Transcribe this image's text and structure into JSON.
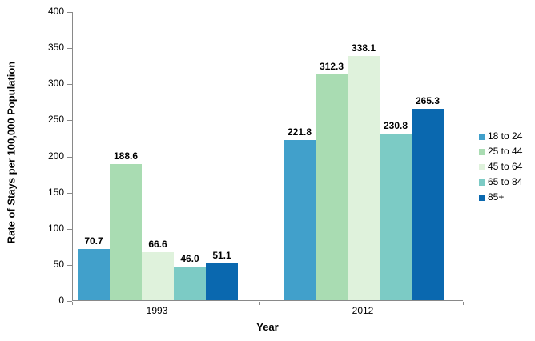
{
  "chart_data": {
    "type": "bar",
    "title": "",
    "xlabel": "Year",
    "ylabel": "Rate of Stays per 100,000 Population",
    "categories": [
      "1993",
      "2012"
    ],
    "series": [
      {
        "name": "18 to 24",
        "color": "#41A0CB",
        "values": [
          70.7,
          221.8
        ],
        "labels": [
          "70.7",
          "221.8"
        ]
      },
      {
        "name": "25 to 44",
        "color": "#A9DCB2",
        "values": [
          188.6,
          312.3
        ],
        "labels": [
          "188.6",
          "312.3"
        ]
      },
      {
        "name": "45 to 64",
        "color": "#DFF2DC",
        "values": [
          66.6,
          338.1
        ],
        "labels": [
          "66.6",
          "338.1"
        ]
      },
      {
        "name": "65 to 84",
        "color": "#7CCBC5",
        "values": [
          46.0,
          230.8
        ],
        "labels": [
          "46.0",
          "230.8"
        ]
      },
      {
        "name": "85+",
        "color": "#0A68AF",
        "values": [
          51.1,
          265.3
        ],
        "labels": [
          "51.1",
          "265.3"
        ]
      }
    ],
    "ylim": [
      0,
      400
    ],
    "ytick_step": 50,
    "grid": false,
    "legend_position": "right",
    "axis_color": "#898989"
  }
}
